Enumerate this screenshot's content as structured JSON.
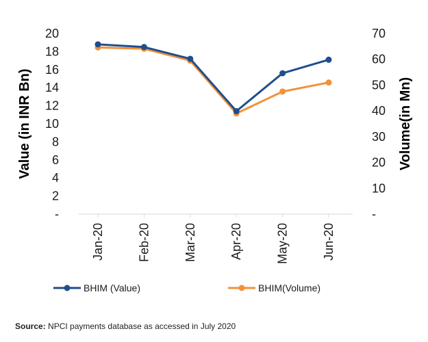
{
  "chart_data": {
    "type": "line",
    "categories": [
      "Jan-20",
      "Feb-20",
      "Mar-20",
      "Apr-20",
      "May-20",
      "Jun-20"
    ],
    "y_left": {
      "label": "Value (in INR Bn)",
      "range": [
        0,
        20
      ],
      "ticks": [
        "-",
        "2",
        "4",
        "6",
        "8",
        "10",
        "12",
        "14",
        "16",
        "18",
        "20"
      ]
    },
    "y_right": {
      "label": "Volume(in Mn)",
      "range": [
        0,
        70
      ],
      "ticks": [
        "-",
        "10",
        "20",
        "30",
        "40",
        "50",
        "60",
        "70"
      ]
    },
    "series": [
      {
        "name": "BHIM (Value)",
        "axis": "left",
        "color": "#1f4e8c",
        "values": [
          18.8,
          18.5,
          17.2,
          11.4,
          15.6,
          17.1
        ]
      },
      {
        "name": "BHIM(Volume)",
        "axis": "right",
        "color": "#f0923a",
        "values": [
          64.6,
          64.1,
          59.5,
          39.0,
          47.5,
          51.0
        ]
      }
    ],
    "grid": false,
    "legend_position": "bottom"
  },
  "source": {
    "label": "Source:",
    "text": "NPCI payments database as accessed in July 2020"
  }
}
